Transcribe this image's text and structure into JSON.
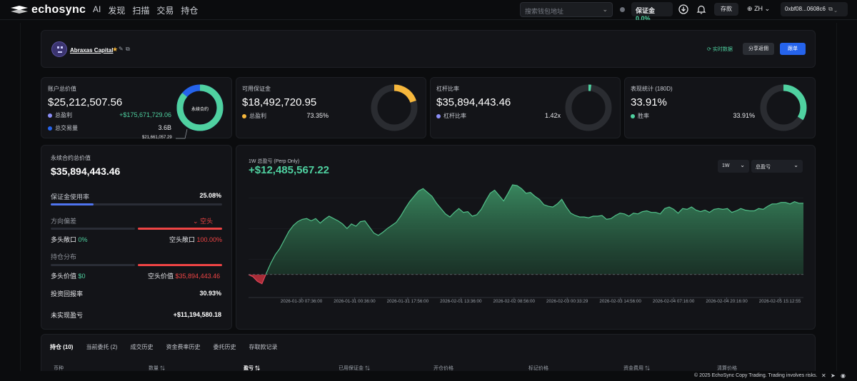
{
  "nav": {
    "brand": "echosync",
    "links": [
      "AI",
      "发现",
      "扫描",
      "交易",
      "持仓"
    ],
    "search_placeholder": "搜索钱包地址",
    "margin_label": "保证金",
    "margin_value": "0.0%",
    "deposit_label": "存款",
    "lang_label": "ZH",
    "wallet_address": "0xbf08...0608c6"
  },
  "header": {
    "trader_name": "Abraxas Capital",
    "realtime_label": "实时数据",
    "share_label": "分享返佣",
    "follow_label": "跟单"
  },
  "cards": {
    "account": {
      "label": "账户总价值",
      "value": "$25,212,507.56",
      "row1_label": "总盈利",
      "row1_value": "+$175,671,729.06",
      "row2_label": "总交易量",
      "row2_value": "3.6B",
      "donut_center": "永续合约",
      "donut_callout": "$21,661,057.29",
      "donut_fraction": 0.86
    },
    "available": {
      "label": "可用保证金",
      "value": "$18,492,720.95",
      "row1_label": "总盈利",
      "row1_value": "73.35%",
      "donut_fraction": 0.2
    },
    "leverage": {
      "label": "杠杆比率",
      "value": "$35,894,443.46",
      "row1_label": "杠杆比率",
      "row1_value": "1.42x",
      "donut_fraction": 0.02
    },
    "performance": {
      "label": "表现统计 (180D)",
      "value": "33.91%",
      "row1_label": "胜率",
      "row1_value": "33.91%",
      "donut_fraction": 0.3391
    }
  },
  "perp": {
    "label": "永续合约总价值",
    "value": "$35,894,443.46",
    "margin_usage_label": "保证金使用率",
    "margin_usage_value": "25.08%",
    "margin_usage_fraction": 0.2508,
    "direction_label": "方向偏差",
    "direction_value": "空头",
    "long_exposure_label": "多头敞口",
    "long_exposure_value": "0%",
    "short_exposure_label": "空头敞口",
    "short_exposure_value": "100.00%",
    "distribution_label": "持仓分布",
    "long_value_label": "多头价值",
    "long_value": "$0",
    "short_value_label": "空头价值",
    "short_value": "$35,894,443.46",
    "roi_label": "投资回报率",
    "roi_value": "30.93%",
    "unrealized_label": "未实现盈亏",
    "unrealized_value": "+$11,194,580.18"
  },
  "pnl_chart": {
    "subtitle": "1W 总盈亏 (Perp Only)",
    "headline": "+$12,485,567.22",
    "range_select": "1W",
    "metric_select": "总盈亏"
  },
  "chart_data": {
    "type": "area",
    "title": "1W 总盈亏 (Perp Only)",
    "x_tick_labels": [
      "2026-01-30 07:36:00",
      "2026-01-31 00:36:00",
      "2026-01-31 17:56:00",
      "2026-02-01 13:36:00",
      "2026-02-02 08:56:00",
      "2026-02-03 00:33:29",
      "2026-02-03 14:56:00",
      "2026-02-04 07:16:00",
      "2026-02-04 20:16:00",
      "2026-02-05 15:12:55"
    ],
    "series": [
      {
        "name": "总盈亏",
        "values": [
          0,
          -0.3,
          -0.9,
          -1.2,
          0.2,
          1.5,
          2.6,
          3.4,
          4.5,
          5.6,
          6.4,
          6.9,
          7.2,
          7.3,
          7.0,
          7.3,
          6.7,
          7.2,
          7.6,
          7.3,
          7.0,
          6.6,
          6.0,
          6.6,
          6.3,
          6.9,
          7.0,
          6.2,
          5.4,
          5.1,
          5.5,
          6.0,
          6.4,
          6.8,
          7.6,
          8.6,
          9.5,
          10.2,
          10.9,
          11.2,
          10.7,
          10.2,
          9.3,
          8.6,
          7.9,
          7.5,
          8.1,
          8.6,
          8.1,
          8.2,
          7.6,
          7.8,
          8.5,
          9.6,
          10.6,
          11.0,
          10.3,
          9.6,
          10.6,
          11.7,
          11.6,
          11.2,
          10.6,
          10.7,
          10.2,
          9.8,
          9.1,
          8.9,
          8.8,
          9.2,
          9.8,
          8.8,
          8.0,
          7.7,
          7.5,
          7.5,
          7.4,
          7.6,
          7.6,
          7.7,
          7.2,
          7.3,
          7.7,
          8.0,
          7.9,
          7.6,
          8.0,
          7.9,
          8.2,
          8.3,
          8.1,
          8.1,
          7.9,
          8.6,
          8.8,
          8.5,
          8.0,
          8.6,
          8.5,
          8.8,
          8.4,
          8.2,
          8.4,
          8.1,
          8.5,
          8.6,
          8.5,
          8.6,
          8.1,
          8.3,
          8.6,
          8.4,
          8.3,
          8.3,
          8.6,
          8.5,
          8.9,
          9.2,
          9.2,
          9.4,
          9.4,
          9.2,
          9.5,
          9.3,
          9.3
        ]
      }
    ],
    "ylim": [
      -3,
      13
    ]
  },
  "positions": {
    "tabs": [
      "持仓 (10)",
      "当前委托 (2)",
      "成交历史",
      "资金费率历史",
      "委托历史",
      "存取款记录"
    ],
    "columns": [
      "币种",
      "数量",
      "盈亏",
      "已用保证金",
      "开仓价格",
      "标记价格",
      "资金费用",
      "清算价格"
    ]
  },
  "footer": {
    "text": "© 2025 EchoSync Copy Trading. Trading involves risks."
  },
  "colors": {
    "accent_green": "#4fd1a0",
    "accent_red": "#ef4444",
    "accent_blue": "#2563eb",
    "accent_yellow": "#f6b73c",
    "accent_purple": "#8b8ef7"
  }
}
